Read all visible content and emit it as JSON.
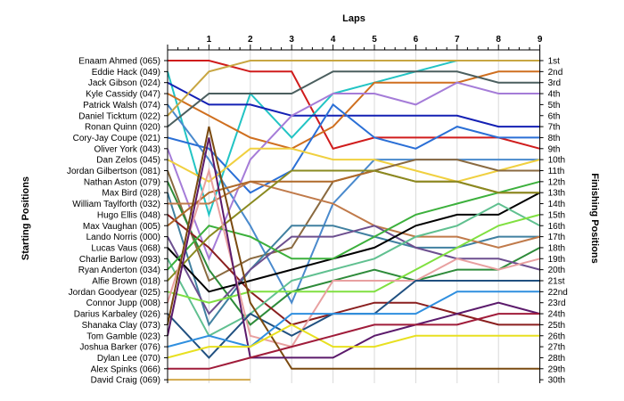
{
  "chart_data": {
    "type": "line",
    "title": "Laps",
    "ylabel_left": "Starting Positions",
    "ylabel_right": "Finishing Positions",
    "laps": [
      1,
      2,
      3,
      4,
      5,
      6,
      7,
      8,
      9
    ],
    "x_range": [
      0,
      9
    ],
    "y_range": [
      1,
      30
    ],
    "y_inverted": true,
    "grid": "vertical",
    "starting_labels": [
      "Enaam Ahmed (065)",
      "Eddie Hack (049)",
      "Jack Gibson (024)",
      "Kyle Cassidy (047)",
      "Patrick Walsh (074)",
      "Daniel Ticktum (022)",
      "Ronan Quinn (020)",
      "Cory-Jay Coupe (021)",
      "Oliver York (043)",
      "Dan Zelos (045)",
      "Jordan Gilbertson (081)",
      "Nathan Aston (079)",
      "Max Bird (028)",
      "William Taylforth (032)",
      "Hugo Ellis (048)",
      "Max Vaughan (005)",
      "Lando Norris (000)",
      "Lucas Vaus (068)",
      "Charlie Barlow (093)",
      "Ryan Anderton (034)",
      "Alfie Brown (018)",
      "Jordan Goodyear (025)",
      "Connor Jupp (008)",
      "Darius Karbaley (026)",
      "Shanaka Clay (073)",
      "Tom Gamble (023)",
      "Joshua Barker (076)",
      "Dylan Lee (070)",
      "Alex Spinks (066)",
      "David Craig (069)"
    ],
    "finishing_labels": [
      "1st",
      "2nd",
      "3rd",
      "4th",
      "5th",
      "6th",
      "7th",
      "8th",
      "9th",
      "10th",
      "11th",
      "12th",
      "13th",
      "14th",
      "15th",
      "16th",
      "17th",
      "18th",
      "19th",
      "20th",
      "21st",
      "22nd",
      "23rd",
      "24th",
      "25th",
      "26th",
      "27th",
      "28th",
      "29th",
      "30th"
    ],
    "series": [
      {
        "start": 1,
        "positions": [
          1,
          2,
          2,
          9,
          8,
          8,
          8,
          8,
          9
        ],
        "color": "#d01c1c"
      },
      {
        "start": 2,
        "positions": [
          15,
          4,
          8,
          4,
          3,
          2,
          1,
          1,
          1
        ],
        "color": "#22c4c4"
      },
      {
        "start": 3,
        "positions": [
          5,
          5,
          6,
          6,
          6,
          6,
          6,
          7,
          7
        ],
        "color": "#1420b4"
      },
      {
        "start": 4,
        "positions": [
          6,
          8,
          9,
          7,
          3,
          3,
          3,
          2,
          2
        ],
        "color": "#cf6f1f"
      },
      {
        "start": 5,
        "positions": [
          10,
          16,
          23,
          14,
          10,
          10,
          10,
          10,
          10
        ],
        "color": "#4a8acd"
      },
      {
        "start": 6,
        "positions": [
          2,
          1,
          1,
          1,
          1,
          1,
          1,
          1,
          1
        ],
        "color": "#c8a642"
      },
      {
        "start": 7,
        "positions": [
          4,
          4,
          4,
          2,
          2,
          2,
          2,
          3,
          3
        ],
        "color": "#4b5f5f"
      },
      {
        "start": 8,
        "positions": [
          9,
          13,
          11,
          5,
          8,
          9,
          7,
          8,
          8
        ],
        "color": "#2a6fd6"
      },
      {
        "start": 9,
        "positions": [
          19,
          10,
          6,
          4,
          4,
          5,
          3,
          4,
          4
        ],
        "color": "#a57cd8"
      },
      {
        "start": 10,
        "positions": [
          12,
          9,
          9,
          10,
          10,
          11,
          12,
          11,
          10
        ],
        "color": "#f0d040"
      },
      {
        "start": 11,
        "positions": [
          21,
          19,
          18,
          12,
          11,
          10,
          10,
          11,
          11
        ],
        "color": "#8a6a40"
      },
      {
        "start": 12,
        "positions": [
          20,
          25,
          22,
          21,
          20,
          21,
          20,
          20,
          18
        ],
        "color": "#2e8b3a"
      },
      {
        "start": 13,
        "positions": [
          25,
          20,
          16,
          16,
          17,
          18,
          18,
          17,
          17
        ],
        "color": "#4080a0"
      },
      {
        "start": 14,
        "positions": [
          14,
          12,
          13,
          14,
          16,
          17,
          17,
          18,
          17
        ],
        "color": "#c07a4a"
      },
      {
        "start": 15,
        "positions": [
          18,
          22,
          25,
          24,
          23,
          23,
          24,
          25,
          25
        ],
        "color": "#8a1f1f"
      },
      {
        "start": 16,
        "positions": [
          13,
          12,
          12,
          12,
          11,
          12,
          12,
          13,
          13
        ],
        "color": "#b06a2a"
      },
      {
        "start": 17,
        "positions": [
          24,
          20,
          17,
          17,
          16,
          18,
          19,
          19,
          20
        ],
        "color": "#6d4f8f"
      },
      {
        "start": 18,
        "positions": [
          22,
          21,
          20,
          19,
          18,
          16,
          15,
          15,
          13
        ],
        "color": "#000000"
      },
      {
        "start": 19,
        "positions": [
          26,
          24,
          21,
          20,
          19,
          17,
          16,
          14,
          16
        ],
        "color": "#60c090"
      },
      {
        "start": 20,
        "positions": [
          16,
          17,
          19,
          19,
          17,
          15,
          14,
          13,
          12
        ],
        "color": "#3cb03c"
      },
      {
        "start": 21,
        "positions": [
          17,
          14,
          11,
          11,
          11,
          12,
          12,
          13,
          13
        ],
        "color": "#8a8a20"
      },
      {
        "start": 22,
        "positions": [
          23,
          22,
          22,
          22,
          22,
          20,
          18,
          16,
          15
        ],
        "color": "#80e040"
      },
      {
        "start": 23,
        "positions": [
          11,
          26,
          27,
          21,
          21,
          21,
          19,
          20,
          19
        ],
        "color": "#e8a0a0"
      },
      {
        "start": 24,
        "positions": [
          28,
          24,
          26,
          24,
          24,
          21,
          21,
          21,
          21
        ],
        "color": "#205080"
      },
      {
        "start": 25,
        "positions": [
          7,
          23,
          29,
          29,
          29,
          29,
          29,
          29,
          29
        ],
        "color": "#7a4a10"
      },
      {
        "start": 26,
        "positions": [
          8,
          28,
          28,
          28,
          26,
          25,
          24,
          23,
          24
        ],
        "color": "#5b1a6b"
      },
      {
        "start": 27,
        "positions": [
          26,
          27,
          24,
          24,
          24,
          24,
          22,
          22,
          22
        ],
        "color": "#2f8fdf"
      },
      {
        "start": 28,
        "positions": [
          27,
          27,
          25,
          27,
          27,
          26,
          26,
          26,
          26
        ],
        "color": "#e8e020"
      },
      {
        "start": 29,
        "positions": [
          29,
          28,
          27,
          26,
          25,
          25,
          25,
          24,
          24
        ],
        "color": "#a01c3a"
      },
      {
        "start": 30,
        "positions": [
          30,
          30
        ],
        "color": "#d2a84a"
      }
    ]
  }
}
